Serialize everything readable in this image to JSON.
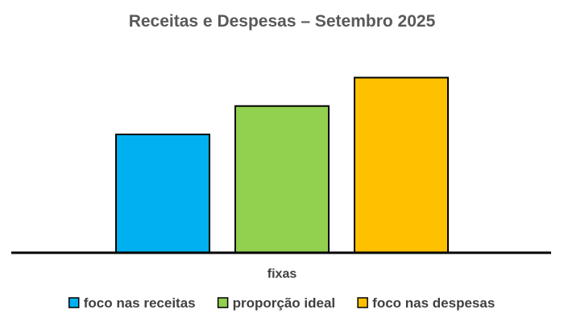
{
  "chart_data": {
    "type": "bar",
    "title": "Receitas e Despesas – Setembro 2025",
    "categories": [
      "fixas"
    ],
    "series": [
      {
        "name": "foco nas receitas",
        "values": [
          50
        ],
        "color": "#00B0F0"
      },
      {
        "name": "proporção ideal",
        "values": [
          62
        ],
        "color": "#92D050"
      },
      {
        "name": "foco nas despesas",
        "values": [
          74
        ],
        "color": "#FFC000"
      }
    ],
    "ylim": [
      0,
      100
    ],
    "grid": false,
    "legend_position": "bottom",
    "xlabel": "",
    "ylabel": ""
  }
}
